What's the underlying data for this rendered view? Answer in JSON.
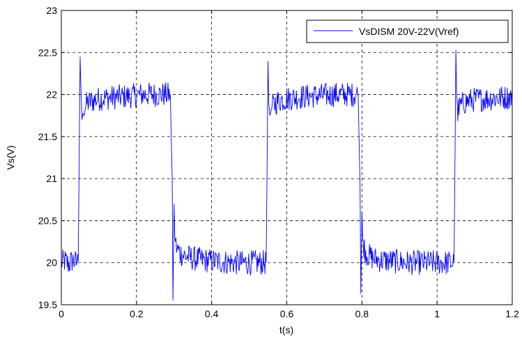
{
  "chart_data": {
    "type": "line",
    "title": "",
    "xlabel": "t(s)",
    "ylabel": "Vs(V)",
    "xlim": [
      0,
      1.2
    ],
    "ylim": [
      19.5,
      23
    ],
    "xticks": [
      0,
      0.2,
      0.4,
      0.6,
      0.8,
      1,
      1.2
    ],
    "xtick_labels": [
      "0",
      "0.2",
      "0.4",
      "0.6",
      "0.8",
      "1",
      "1.2"
    ],
    "yticks": [
      19.5,
      20,
      20.5,
      21,
      21.5,
      22,
      22.5,
      23
    ],
    "ytick_labels": [
      "19.5",
      "20",
      "20.5",
      "21",
      "21.5",
      "22",
      "22.5",
      "23"
    ],
    "grid": true,
    "legend_position": "top-right",
    "series": [
      {
        "name": "VsDISM 20V-22V(Vref)",
        "color": "#0000ff",
        "x": [
          0,
          0.01,
          0.02,
          0.03,
          0.04,
          0.045,
          0.048,
          0.05,
          0.052,
          0.055,
          0.06,
          0.07,
          0.08,
          0.1,
          0.12,
          0.15,
          0.18,
          0.2,
          0.22,
          0.25,
          0.27,
          0.29,
          0.295,
          0.297,
          0.3,
          0.302,
          0.305,
          0.31,
          0.32,
          0.33,
          0.35,
          0.38,
          0.4,
          0.43,
          0.46,
          0.5,
          0.53,
          0.545,
          0.548,
          0.55,
          0.552,
          0.555,
          0.56,
          0.57,
          0.58,
          0.6,
          0.63,
          0.66,
          0.7,
          0.73,
          0.76,
          0.79,
          0.795,
          0.797,
          0.8,
          0.802,
          0.805,
          0.81,
          0.82,
          0.83,
          0.85,
          0.88,
          0.9,
          0.93,
          0.96,
          1.0,
          1.03,
          1.045,
          1.048,
          1.05,
          1.052,
          1.055,
          1.06,
          1.07,
          1.08,
          1.1,
          1.13,
          1.16,
          1.2
        ],
        "y": [
          20.0,
          20.02,
          19.98,
          20.03,
          20.0,
          20.01,
          21.5,
          22.45,
          22.1,
          21.7,
          21.85,
          21.9,
          21.92,
          21.95,
          21.96,
          21.97,
          21.98,
          21.99,
          22.0,
          22.0,
          22.0,
          22.0,
          21.0,
          19.55,
          20.7,
          20.3,
          20.2,
          20.15,
          20.1,
          20.08,
          20.05,
          20.03,
          20.02,
          20.01,
          20.0,
          20.0,
          20.0,
          20.0,
          21.3,
          22.4,
          21.9,
          21.75,
          21.85,
          21.9,
          21.93,
          21.95,
          21.97,
          21.98,
          21.99,
          22.0,
          22.0,
          22.0,
          20.9,
          19.63,
          20.6,
          20.3,
          20.2,
          20.12,
          20.08,
          20.05,
          20.03,
          20.02,
          20.01,
          20.0,
          20.0,
          20.0,
          20.0,
          20.0,
          21.4,
          22.53,
          22.0,
          21.8,
          21.85,
          21.9,
          21.92,
          21.94,
          21.95,
          21.96,
          21.97
        ]
      }
    ]
  }
}
